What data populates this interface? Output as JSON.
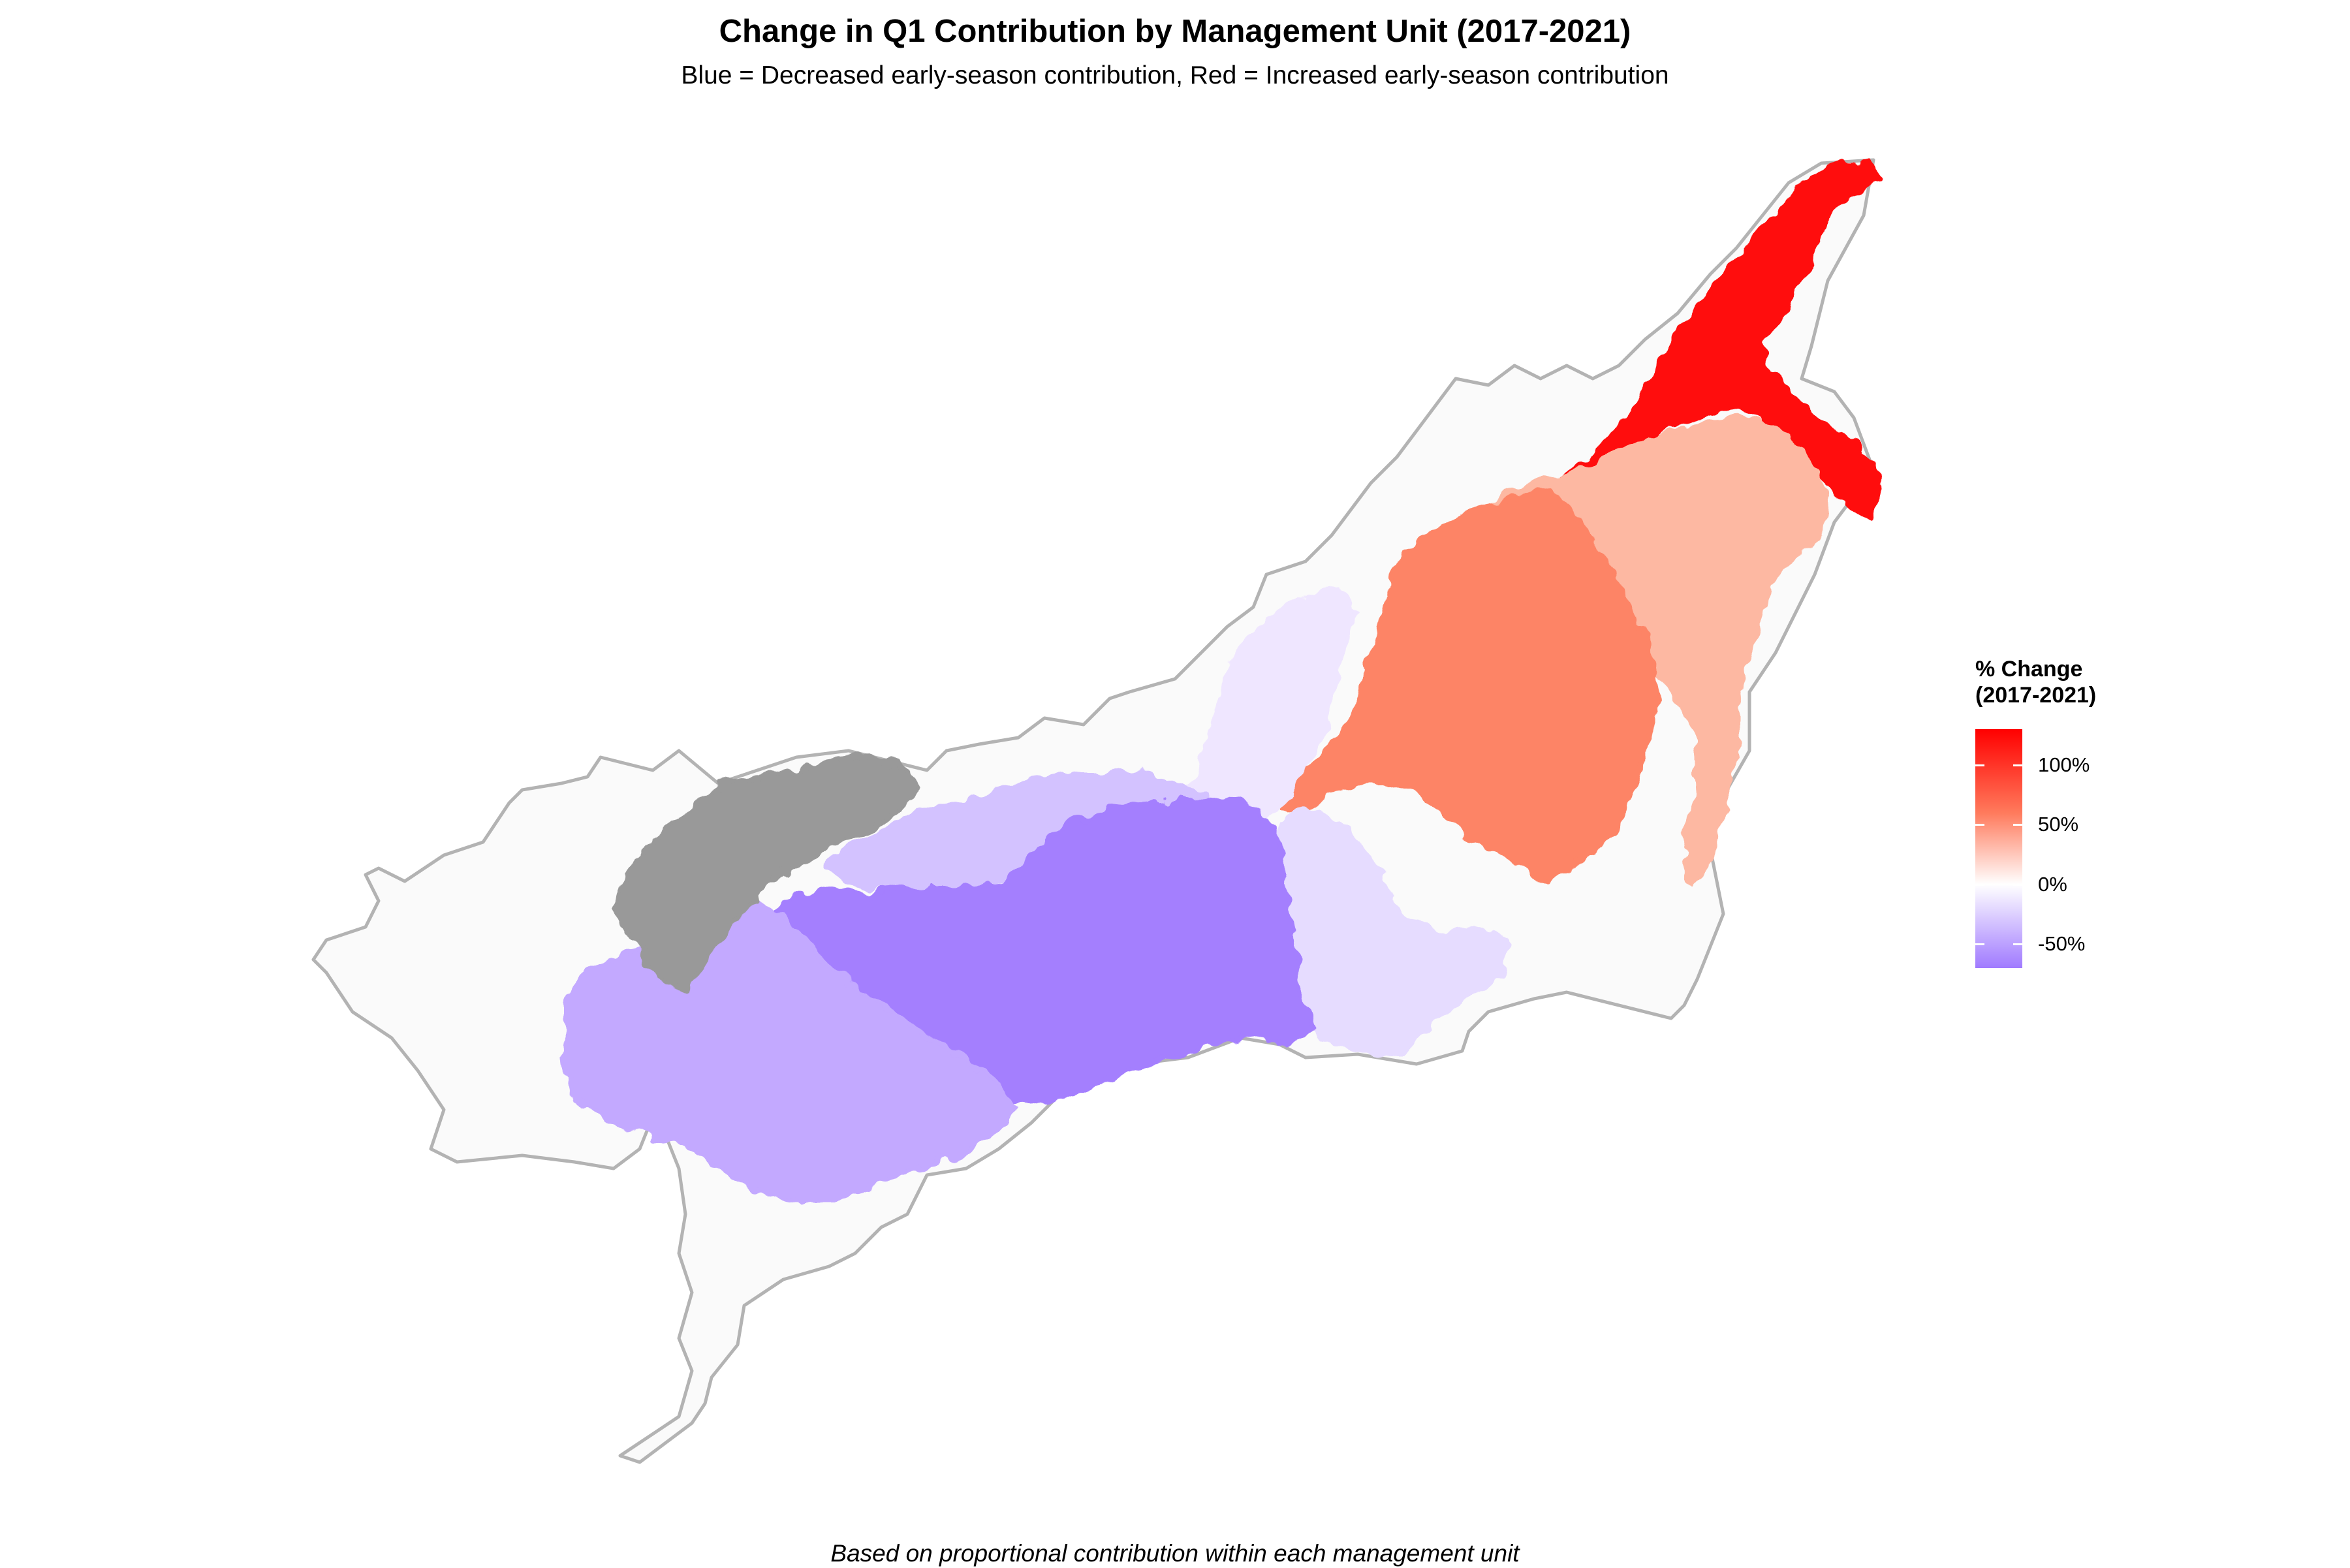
{
  "title": "Change in Q1 Contribution by Management Unit (2017-2021)",
  "subtitle": "Blue = Decreased early-season contribution, Red = Increased early-season contribution",
  "caption": "Based on proportional contribution within each management unit",
  "legend": {
    "title_line1": "% Change",
    "title_line2": "(2017-2021)",
    "min": -70,
    "max": 130,
    "ticks": [
      {
        "value": 100,
        "label": "100%"
      },
      {
        "value": 50,
        "label": "50%"
      },
      {
        "value": 0,
        "label": "0%"
      },
      {
        "value": -50,
        "label": "-50%"
      }
    ],
    "colors": {
      "high": "#ff0000",
      "mid_high": "#ff7a5c",
      "mid": "#ffffff",
      "low": "#a07aff"
    }
  },
  "colors": {
    "boundary": "#b3b3b3",
    "basin_fill": "#fafafa",
    "no_data": "#999999"
  },
  "chart_data": {
    "type": "choropleth",
    "variable": "% Change (2017-2021)",
    "regions": [
      {
        "unit": "far north-east headwaters",
        "change_pct": 125,
        "color": "#ff1010"
      },
      {
        "unit": "north-east tributaries",
        "change_pct": 45,
        "color": "#fdb8a2"
      },
      {
        "unit": "central-east drainage",
        "change_pct": 70,
        "color": "#fd8466"
      },
      {
        "unit": "central corridor",
        "change_pct": -10,
        "color": "#efe6ff"
      },
      {
        "unit": "eastern lowland",
        "change_pct": -15,
        "color": "#e6dcff"
      },
      {
        "unit": "central mid-west",
        "change_pct": -35,
        "color": "#d3c2ff"
      },
      {
        "unit": "central basin",
        "change_pct": -60,
        "color": "#a47ffe"
      },
      {
        "unit": "western headwaters",
        "change_pct": -45,
        "color": "#c3a9ff"
      },
      {
        "unit": "north-west unit",
        "change_pct": null,
        "color": "#999999"
      }
    ]
  }
}
